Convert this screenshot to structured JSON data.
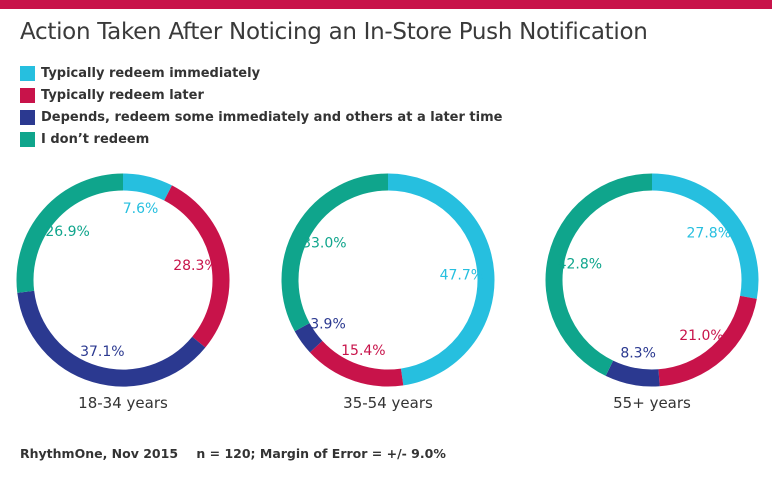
{
  "title": "Action Taken After Noticing an In-Store Push Notification",
  "colors": {
    "brand_bar": "#c8134a",
    "immediately": "#26bfdf",
    "later": "#c8134a",
    "depends": "#2b3990",
    "dont": "#0fa58c"
  },
  "chart_data": {
    "type": "donut",
    "title": "Action Taken After Noticing an In-Store Push Notification",
    "legend": [
      {
        "label": "Typically redeem immediately",
        "color": "#26bfdf"
      },
      {
        "label": "Typically redeem later",
        "color": "#c8134a"
      },
      {
        "label": "Depends, redeem some immediately and others at a later time",
        "color": "#2b3990"
      },
      {
        "label": "I don’t redeem",
        "color": "#0fa58c"
      }
    ],
    "categories": [
      "Typically redeem immediately",
      "Typically redeem later",
      "Depends, redeem some immediately and others at a later time",
      "I don’t redeem"
    ],
    "charts": [
      {
        "label": "18-34 years",
        "values": [
          7.6,
          28.3,
          37.1,
          26.9
        ],
        "value_labels": [
          "7.6%",
          "28.3%",
          "37.1%",
          "26.9%"
        ]
      },
      {
        "label": "35-54 years",
        "values": [
          47.7,
          15.4,
          3.9,
          33.0
        ],
        "value_labels": [
          "47.7%",
          "15.4%",
          "3.9%",
          "33.0%"
        ]
      },
      {
        "label": "55+ years",
        "values": [
          27.8,
          21.0,
          8.3,
          42.8
        ],
        "value_labels": [
          "27.8%",
          "21.0%",
          "8.3%",
          "42.8%"
        ]
      }
    ]
  },
  "footer": {
    "source": "RhythmOne, Nov 2015",
    "note": "n = 120; Margin of Error = +/- 9.0%"
  }
}
